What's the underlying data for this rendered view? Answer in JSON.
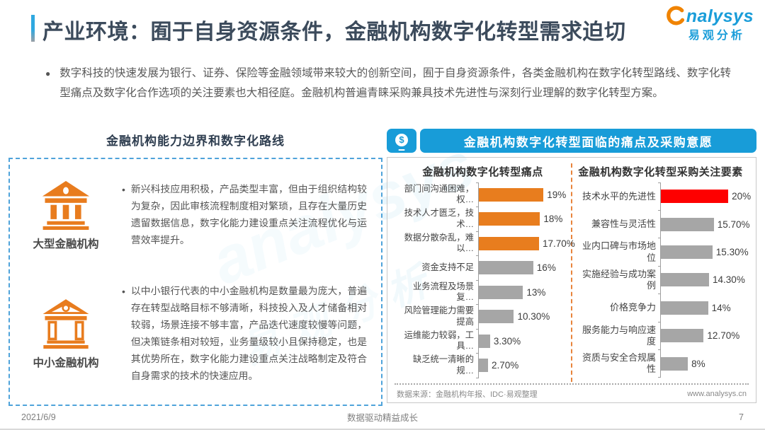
{
  "header": {
    "title": "产业环境：囿于自身资源条件，金融机构数字化转型需求迫切",
    "logo_text": "nalysys",
    "logo_subtext": "易观分析"
  },
  "watermark": {
    "line1": "analysys",
    "line2": "易观分析"
  },
  "intro_bullet": "数字科技的快速发展为银行、证券、保险等金融领域带来较大的创新空间，囿于自身资源条件，各类金融机构在数字化转型路线、数字化转型痛点及数字化合作选项的关注要素也大相径庭。金融机构普遍青睐采购兼具技术先进性与深刻行业理解的数字化转型方案。",
  "left_panel": {
    "title": "金融机构能力边界和数字化路线",
    "items": [
      {
        "label": "大型金融机构",
        "icon": "bank-building-icon",
        "bullet": "•",
        "text": "新兴科技应用积极，产品类型丰富，但由于组织结构较为复杂，因此审核流程制度相对繁琐，且存在大量历史遗留数据信息，数字化能力建设重点关注流程优化与运营效率提升。"
      },
      {
        "label": "中小金融机构",
        "icon": "bank-outline-icon",
        "bullet": "•",
        "text": "以中小银行代表的中小金融机构是数量最为庞大，普遍存在转型战略目标不够清晰，科技投入及人才储备相对较弱，场景连接不够丰富，产品迭代速度较慢等问题，但决策链条相对较短，业务量级较小且保持稳定，也是其优势所在，数字化能力建设重点关注战略制定及符合自身需求的技术的快速应用。"
      }
    ]
  },
  "right_panel": {
    "header": "金融机构数字化转型面临的痛点及采购意愿",
    "header_icon": "mobile-payment-icon",
    "dollar_glyph": "$",
    "source": "数据来源：金融机构年报、IDC·易观整理",
    "website": "www.analysys.cn"
  },
  "chart_data": [
    {
      "type": "bar",
      "orientation": "horizontal",
      "title": "金融机构数字化转型痛点",
      "categories": [
        "部门间沟通困难，权…",
        "技术人才匮乏，技术…",
        "数据分散杂乱，难以…",
        "资金支持不足",
        "业务流程及场景复…",
        "风险管理能力需要提高",
        "运维能力较弱，工具…",
        "缺乏统一清晰的规…"
      ],
      "values": [
        19,
        18,
        17.7,
        16,
        13,
        10.3,
        3.3,
        2.7
      ],
      "labels": [
        "19%",
        "18%",
        "17.70%",
        "16%",
        "13%",
        "10.30%",
        "3.30%",
        "2.70%"
      ],
      "bar_colors": [
        "#E87D1E",
        "#E87D1E",
        "#E87D1E",
        "#A6A6A6",
        "#A6A6A6",
        "#A6A6A6",
        "#A6A6A6",
        "#A6A6A6"
      ],
      "xlim": [
        0,
        20
      ],
      "grid": false,
      "legend": false
    },
    {
      "type": "bar",
      "orientation": "horizontal",
      "title": "金融机构数字化转型采购关注要素",
      "categories": [
        "技术水平的先进性",
        "兼容性与灵活性",
        "业内口碑与市场地位",
        "实施经验与成功案例",
        "价格竞争力",
        "服务能力与响应速度",
        "资质与安全合规属性"
      ],
      "values": [
        20,
        15.7,
        15.3,
        14.3,
        14,
        12.7,
        8
      ],
      "labels": [
        "20%",
        "15.70%",
        "15.30%",
        "14.30%",
        "14%",
        "12.70%",
        "8%"
      ],
      "bar_colors": [
        "#FE0000",
        "#A6A6A6",
        "#A6A6A6",
        "#A6A6A6",
        "#A6A6A6",
        "#A6A6A6",
        "#A6A6A6"
      ],
      "xlim": [
        0,
        20
      ],
      "grid": false,
      "legend": false
    }
  ],
  "footer": {
    "date": "2021/6/9",
    "slogan": "数据驱动精益成长",
    "page": "7"
  },
  "colors": {
    "accent_blue": "#189CD8",
    "orange": "#E87D1E",
    "red": "#FE0000",
    "bar_gray": "#A6A6A6",
    "title_text": "#3C4B5C"
  }
}
